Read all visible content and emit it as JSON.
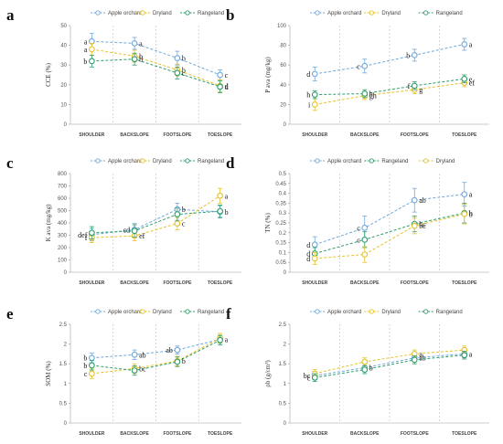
{
  "colors": {
    "apple": "#6fa8dc",
    "dry": "#e6c229",
    "range": "#2e9e6b"
  },
  "panels": [
    {
      "letter": "a"
    },
    {
      "letter": "b"
    },
    {
      "letter": "c"
    },
    {
      "letter": "d"
    },
    {
      "letter": "e"
    },
    {
      "letter": "f"
    }
  ],
  "chart_data": [
    {
      "type": "line",
      "panel": "a",
      "ylabel": "CCE (%)",
      "ylim": [
        0,
        50
      ],
      "yticks": [
        0,
        10,
        20,
        30,
        40,
        50
      ],
      "categories": [
        "SHOULDER",
        "BACKSLOPE",
        "FOOTSLOPE",
        "TOESLOPE"
      ],
      "legend_placement": "top",
      "series": [
        {
          "name": "Apple orchard",
          "key": "apple",
          "values": [
            42,
            41,
            33.5,
            25
          ],
          "errors": [
            4,
            3,
            3.5,
            2.5
          ],
          "letters": [
            "a",
            "a",
            "b",
            "c"
          ],
          "letter_side": [
            "left",
            "right",
            "right",
            "right"
          ]
        },
        {
          "name": "Dryland",
          "key": "dry",
          "values": [
            38,
            34.5,
            27.5,
            19.5
          ],
          "errors": [
            3,
            3,
            3,
            3
          ],
          "letters": [
            "a",
            "b",
            "b",
            "d"
          ],
          "letter_side": [
            "left",
            "right",
            "right",
            "right"
          ]
        },
        {
          "name": "Rangeland",
          "key": "range",
          "values": [
            32,
            33,
            26,
            19
          ],
          "errors": [
            3,
            3,
            3,
            3
          ],
          "letters": [
            "b",
            "b",
            "c",
            "d"
          ],
          "letter_side": [
            "left",
            "right",
            "right",
            "right"
          ]
        }
      ]
    },
    {
      "type": "line",
      "panel": "b",
      "ylabel": "P ava (mg/kg)",
      "ylim": [
        0,
        100
      ],
      "yticks": [
        0,
        20,
        40,
        60,
        80,
        100
      ],
      "categories": [
        "SHOULDER",
        "BACKSLOPE",
        "FOOTSLOPE",
        "TOESLOPE"
      ],
      "legend_placement": "top",
      "series": [
        {
          "name": "Apple orchard",
          "key": "apple",
          "values": [
            51,
            59,
            70,
            81
          ],
          "errors": [
            7,
            7,
            6,
            6
          ],
          "letters": [
            "d",
            "c",
            "b",
            "a"
          ],
          "letter_side": [
            "left",
            "left",
            "left",
            "right"
          ]
        },
        {
          "name": "Dryland",
          "key": "dry",
          "values": [
            20,
            29,
            35,
            42
          ],
          "errors": [
            6,
            4,
            4,
            4
          ],
          "letters": [
            "i",
            "gh",
            "g",
            "ef"
          ],
          "letter_side": [
            "left",
            "right",
            "right",
            "right"
          ]
        },
        {
          "name": "Rangeland",
          "key": "range",
          "values": [
            30,
            31,
            39,
            46
          ],
          "errors": [
            4,
            4,
            4,
            4
          ],
          "letters": [
            "h",
            "h",
            "f",
            "e"
          ],
          "letter_side": [
            "left",
            "right",
            "left",
            "right"
          ]
        }
      ]
    },
    {
      "type": "line",
      "panel": "c",
      "ylabel": "K ava (mg/kg)",
      "ylim": [
        0,
        800
      ],
      "yticks": [
        0,
        100,
        200,
        300,
        400,
        500,
        600,
        700,
        800
      ],
      "categories": [
        "SHOULDER",
        "BACKSLOPE",
        "FOOTSLOPE",
        "TOESLOPE"
      ],
      "legend_placement": "top",
      "series": [
        {
          "name": "Apple orchard",
          "key": "apple",
          "values": [
            305,
            345,
            510,
            490
          ],
          "errors": [
            50,
            50,
            50,
            50
          ],
          "letters": [
            "def",
            "cd",
            "b",
            "b"
          ],
          "letter_side": [
            "left",
            "left",
            "right",
            "right"
          ]
        },
        {
          "name": "Dryland",
          "key": "dry",
          "values": [
            280,
            295,
            395,
            620
          ],
          "errors": [
            40,
            40,
            50,
            60
          ],
          "letters": [
            "f",
            "ef",
            "c",
            "a"
          ],
          "letter_side": [
            "left",
            "right",
            "right",
            "right"
          ]
        },
        {
          "name": "Rangeland",
          "key": "range",
          "values": [
            320,
            335,
            470,
            495
          ],
          "errors": [
            50,
            50,
            50,
            50
          ],
          "letters": [
            "",
            "",
            "",
            ""
          ],
          "letter_side": [
            "left",
            "left",
            "left",
            "left"
          ]
        }
      ]
    },
    {
      "type": "line",
      "panel": "d",
      "ylabel": "TN (%)",
      "ylim": [
        0,
        0.5
      ],
      "yticks": [
        0,
        0.05,
        0.1,
        0.15,
        0.2,
        0.25,
        0.3,
        0.35,
        0.4,
        0.45,
        0.5
      ],
      "categories": [
        "SHOULDER",
        "BACKSLOPE",
        "FOOTSLOPE",
        "TOESLOPE"
      ],
      "legend_placement": "top",
      "series": [
        {
          "name": "Apple orchard",
          "key": "apple",
          "values": [
            0.14,
            0.225,
            0.365,
            0.395
          ],
          "errors": [
            0.04,
            0.06,
            0.06,
            0.06
          ],
          "letters": [
            "d",
            "c",
            "ab",
            "a"
          ],
          "letter_side": [
            "left",
            "left",
            "right",
            "right"
          ]
        },
        {
          "name": "Rangeland",
          "key": "range",
          "values": [
            0.095,
            0.165,
            0.245,
            0.3
          ],
          "errors": [
            0.03,
            0.04,
            0.04,
            0.05
          ],
          "letters": [
            "d",
            "c",
            "bc",
            "b"
          ],
          "letter_side": [
            "left",
            "left",
            "right",
            "right"
          ]
        },
        {
          "name": "Dryland",
          "key": "dry",
          "values": [
            0.07,
            0.09,
            0.235,
            0.295
          ],
          "errors": [
            0.03,
            0.04,
            0.04,
            0.05
          ],
          "letters": [
            "d",
            "",
            "bc",
            "b"
          ],
          "letter_side": [
            "left",
            "left",
            "right",
            "right"
          ]
        }
      ]
    },
    {
      "type": "line",
      "panel": "e",
      "ylabel": "SOM (%)",
      "ylim": [
        0,
        2.5
      ],
      "yticks": [
        0,
        0.5,
        1,
        1.5,
        2,
        2.5
      ],
      "categories": [
        "SHOULDER",
        "BACKSLOPE",
        "FOOTSLOPE",
        "TOESLOPE"
      ],
      "legend_placement": "top",
      "series": [
        {
          "name": "Apple orchard",
          "key": "apple",
          "values": [
            1.65,
            1.73,
            1.85,
            2.12
          ],
          "errors": [
            0.12,
            0.12,
            0.1,
            0.1
          ],
          "letters": [
            "b",
            "ab",
            "ab",
            "a"
          ],
          "letter_side": [
            "left",
            "right",
            "left",
            "right"
          ]
        },
        {
          "name": "Dryland",
          "key": "dry",
          "values": [
            1.25,
            1.38,
            1.57,
            2.15
          ],
          "errors": [
            0.12,
            0.12,
            0.12,
            0.12
          ],
          "letters": [
            "c",
            "bc",
            "b",
            ""
          ],
          "letter_side": [
            "left",
            "right",
            "right",
            "right"
          ]
        },
        {
          "name": "Rangeland",
          "key": "range",
          "values": [
            1.46,
            1.33,
            1.55,
            2.1
          ],
          "errors": [
            0.12,
            0.12,
            0.12,
            0.12
          ],
          "letters": [
            "b",
            "",
            "",
            ""
          ],
          "letter_side": [
            "left",
            "left",
            "left",
            "left"
          ]
        }
      ]
    },
    {
      "type": "line",
      "panel": "f",
      "ylabel": "ρb (g/cm³)",
      "ylim": [
        0,
        2.5
      ],
      "yticks": [
        0,
        0.5,
        1,
        1.5,
        2,
        2.5
      ],
      "categories": [
        "SHOULDER",
        "BACKSLOPE",
        "FOOTSLOPE",
        "TOESLOPE"
      ],
      "legend_placement": "top",
      "series": [
        {
          "name": "Apple orchard",
          "key": "apple",
          "values": [
            1.2,
            1.4,
            1.65,
            1.75
          ],
          "errors": [
            0.1,
            0.1,
            0.1,
            0.1
          ],
          "letters": [
            "bc",
            "b",
            "ab",
            "a"
          ],
          "letter_side": [
            "left",
            "right",
            "right",
            "right"
          ]
        },
        {
          "name": "Dryland",
          "key": "dry",
          "values": [
            1.25,
            1.55,
            1.75,
            1.85
          ],
          "errors": [
            0.1,
            0.1,
            0.1,
            0.1
          ],
          "letters": [
            "",
            "",
            "a",
            ""
          ],
          "letter_side": [
            "left",
            "left",
            "right",
            "left"
          ]
        },
        {
          "name": "Rangeland",
          "key": "range",
          "values": [
            1.15,
            1.35,
            1.6,
            1.72
          ],
          "errors": [
            0.1,
            0.1,
            0.1,
            0.1
          ],
          "letters": [
            "c",
            "",
            "",
            ""
          ],
          "letter_side": [
            "left",
            "left",
            "left",
            "left"
          ]
        }
      ]
    }
  ]
}
